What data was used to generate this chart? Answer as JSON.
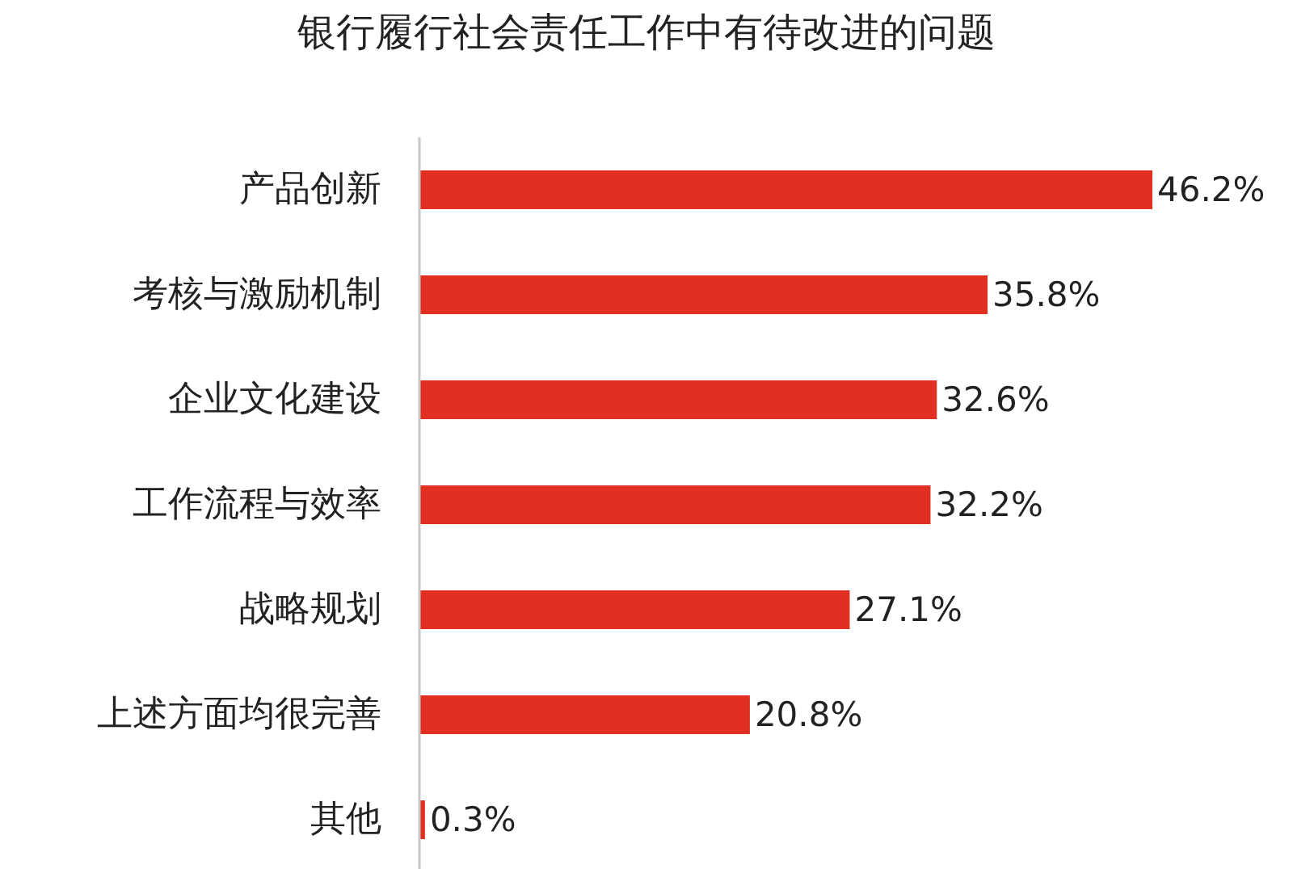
{
  "chart_data": {
    "type": "bar",
    "orientation": "horizontal",
    "title": "银行履行社会责任工作中有待改进的问题",
    "categories": [
      "产品创新",
      "考核与激励机制",
      "企业文化建设",
      "工作流程与效率",
      "战略规划",
      "上述方面均很完善",
      "其他"
    ],
    "values": [
      46.2,
      35.8,
      32.6,
      32.2,
      27.1,
      20.8,
      0.3
    ],
    "value_labels": [
      "46.2%",
      "35.8%",
      "32.6%",
      "32.2%",
      "27.1%",
      "20.8%",
      "0.3%"
    ],
    "color": "#e03021"
  }
}
